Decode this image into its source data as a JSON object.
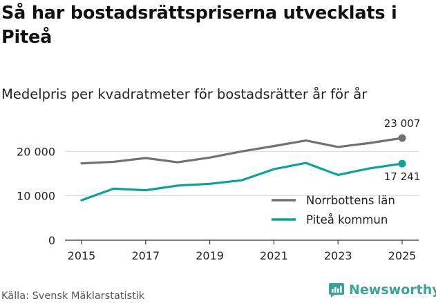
{
  "title": "Så har bostadsrättspriserna utvecklats i Piteå",
  "subtitle": "Medelpris per kvadratmeter för bostadsrätter år för år",
  "source": "Källa: Svensk Mäklarstatistik",
  "brand": {
    "name": "Newsworthy",
    "icon": "newsworthy-logo-icon"
  },
  "colors": {
    "norrbotten": "#717073",
    "pitea": "#0aa39a",
    "grid": "#dcdcdc",
    "axis": "#333333"
  },
  "chart_data": {
    "type": "line",
    "title": "Så har bostadsrättspriserna utvecklats i Piteå",
    "subtitle": "Medelpris per kvadratmeter för bostadsrätter år för år",
    "xlabel": "",
    "ylabel": "",
    "x": [
      2015,
      2016,
      2017,
      2018,
      2019,
      2020,
      2021,
      2022,
      2023,
      2024,
      2025
    ],
    "x_ticks": [
      2015,
      2017,
      2019,
      2021,
      2023,
      2025
    ],
    "x_tick_labels": [
      "2015",
      "2017",
      "2019",
      "2021",
      "2023",
      "2025"
    ],
    "y_ticks": [
      0,
      10000,
      20000
    ],
    "y_tick_labels": [
      "0",
      "10 000",
      "20 000"
    ],
    "ylim": [
      0,
      23007
    ],
    "grid": true,
    "legend_position": "bottom-right",
    "series": [
      {
        "name": "Norrbottens län",
        "values": [
          17300,
          17650,
          18500,
          17550,
          18600,
          20000,
          21200,
          22450,
          21000,
          21900,
          23007
        ],
        "end_label": "23 007"
      },
      {
        "name": "Piteå kommun",
        "values": [
          9000,
          11600,
          11250,
          12300,
          12700,
          13500,
          16000,
          17400,
          14700,
          16200,
          17241
        ],
        "end_label": "17 241"
      }
    ]
  }
}
